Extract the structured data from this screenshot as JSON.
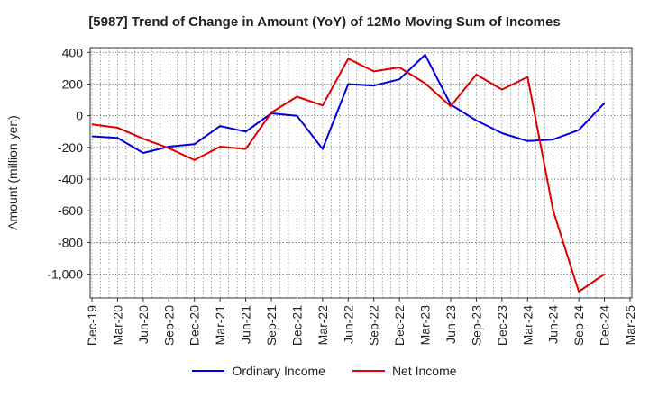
{
  "chart_data": {
    "type": "line",
    "title": "[5987]  Trend of Change in Amount (YoY) of 12Mo Moving Sum of Incomes",
    "ylabel": "Amount (million yen)",
    "xlabel": "",
    "ylim": [
      -1150,
      430
    ],
    "yticks": [
      400,
      200,
      0,
      -200,
      -400,
      -600,
      -800,
      -1000
    ],
    "ytick_labels": [
      "400",
      "200",
      "0",
      "-200",
      "-400",
      "-600",
      "-800",
      "-1,000"
    ],
    "categories": [
      "Dec-19",
      "Mar-20",
      "Jun-20",
      "Sep-20",
      "Dec-20",
      "Mar-21",
      "Jun-21",
      "Sep-21",
      "Dec-21",
      "Mar-22",
      "Jun-22",
      "Sep-22",
      "Dec-22",
      "Mar-23",
      "Jun-23",
      "Sep-23",
      "Dec-23",
      "Mar-24",
      "Jun-24",
      "Sep-24",
      "Dec-24",
      "Mar-25"
    ],
    "grid": true,
    "legend_position": "bottom",
    "series": [
      {
        "name": "Ordinary Income",
        "color": "#0000dd",
        "values": [
          -130,
          -140,
          -235,
          -195,
          -180,
          -65,
          -100,
          15,
          0,
          -210,
          200,
          190,
          230,
          385,
          70,
          -30,
          -110,
          -160,
          -150,
          -90,
          80,
          null
        ]
      },
      {
        "name": "Net Income",
        "color": "#dd0000",
        "values": [
          -55,
          -75,
          -145,
          -205,
          -280,
          -195,
          -210,
          20,
          120,
          65,
          360,
          280,
          305,
          205,
          60,
          260,
          165,
          245,
          -600,
          -1110,
          -1000,
          null
        ]
      }
    ]
  }
}
